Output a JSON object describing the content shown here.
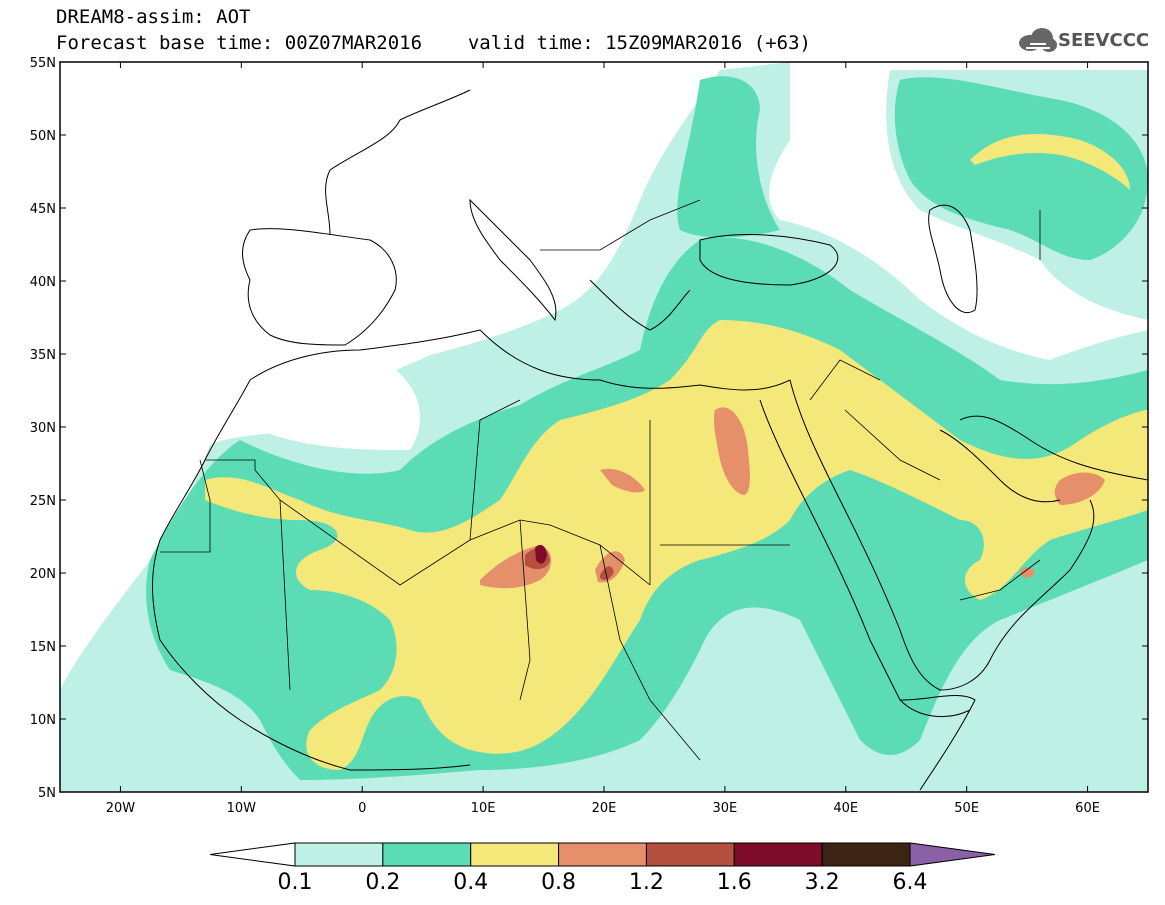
{
  "header": {
    "title": "DREAM8-assim: AOT",
    "base_time_label": "Forecast base time: 00Z07MAR2016",
    "valid_time_label": "valid time: 15Z09MAR2016 (+63)",
    "logo_text": "SEEVCCC"
  },
  "map": {
    "latitude_labels": [
      "55N",
      "50N",
      "45N",
      "40N",
      "35N",
      "30N",
      "25N",
      "20N",
      "15N",
      "10N",
      "5N"
    ],
    "longitude_labels": [
      "20W",
      "10W",
      "0",
      "10E",
      "20E",
      "30E",
      "40E",
      "50E",
      "60E"
    ],
    "lon_range": [
      -25,
      65
    ],
    "lat_range": [
      5,
      55
    ]
  },
  "colorbar": {
    "levels": [
      "0.1",
      "0.2",
      "0.4",
      "0.8",
      "1.2",
      "1.6",
      "3.2",
      "6.4"
    ],
    "colors": [
      "#ffffff",
      "#bff0e6",
      "#5cdcb4",
      "#f5e87a",
      "#e5906a",
      "#b5503e",
      "#7d0c2a",
      "#3c2414",
      "#8a60a6"
    ]
  }
}
